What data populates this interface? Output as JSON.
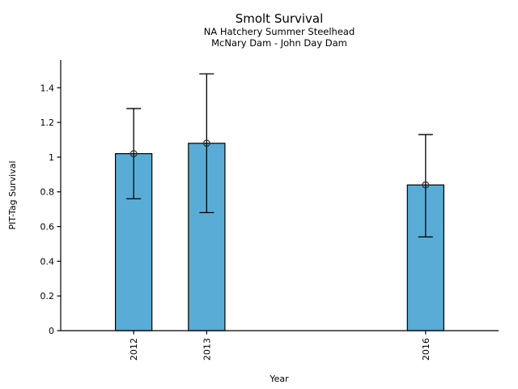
{
  "chart_data": {
    "type": "bar",
    "title": "Smolt Survival",
    "subtitle1": "NA Hatchery Summer Steelhead",
    "subtitle2": "McNary Dam - John Day Dam",
    "xlabel": "Year",
    "ylabel": "PIT-Tag Survival",
    "x": [
      2012,
      2013,
      2016
    ],
    "xtick_labels": [
      "2012",
      "2013",
      "2016"
    ],
    "values": [
      1.02,
      1.08,
      0.84
    ],
    "error_low": [
      0.76,
      0.68,
      0.54
    ],
    "error_high": [
      1.28,
      1.48,
      1.13
    ],
    "xlim": [
      2011,
      2017
    ],
    "ylim": [
      0,
      1.56
    ],
    "yticks": [
      0,
      0.2,
      0.4,
      0.6,
      0.8,
      1,
      1.2,
      1.4
    ],
    "ytick_labels": [
      "0",
      "0.2",
      "0.4",
      "0.6",
      "0.8",
      "1",
      "1.2",
      "1.4"
    ],
    "bar_width_years": 0.5,
    "grid": false,
    "legend": null,
    "marker": "open-circle",
    "colors": {
      "bar_fill": "#58ACD6",
      "bar_edge": "#000000",
      "error_bar": "#000000",
      "marker_edge": "#2b2b2b",
      "axis": "#000000"
    }
  }
}
